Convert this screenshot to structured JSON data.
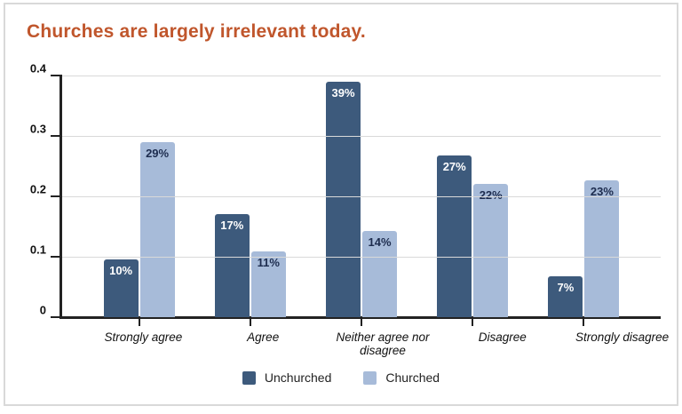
{
  "title": {
    "text": "Churches are largely irrelevant today.",
    "color": "#c0562c"
  },
  "chart_data": {
    "type": "bar",
    "title": "Churches are largely irrelevant today.",
    "categories": [
      "Strongly agree",
      "Agree",
      "Neither agree nor disagree",
      "Disagree",
      "Strongly disagree"
    ],
    "series": [
      {
        "name": "Unchurched",
        "color": "#3d5a7c",
        "label_color": "#ffffff",
        "values": [
          0.095,
          0.17,
          0.39,
          0.267,
          0.068
        ],
        "labels": [
          "10%",
          "17%",
          "39%",
          "27%",
          "7%"
        ]
      },
      {
        "name": "Churched",
        "color": "#a7bbd9",
        "label_color": "#1d2c4e",
        "values": [
          0.29,
          0.109,
          0.143,
          0.221,
          0.227
        ],
        "labels": [
          "29%",
          "11%",
          "14%",
          "22%",
          "23%"
        ]
      }
    ],
    "y_axis": {
      "min": 0,
      "max": 0.4,
      "ticks": [
        "0",
        "0.1",
        "0.2",
        "0.3",
        "0.4"
      ],
      "tick_values": [
        0,
        0.1,
        0.2,
        0.3,
        0.4
      ]
    },
    "grid": true,
    "legend_position": "bottom",
    "colors": {
      "gridline": "#d9d9d9",
      "axis": "#222222",
      "tick_label": "#111111",
      "category_label": "#111111"
    }
  }
}
